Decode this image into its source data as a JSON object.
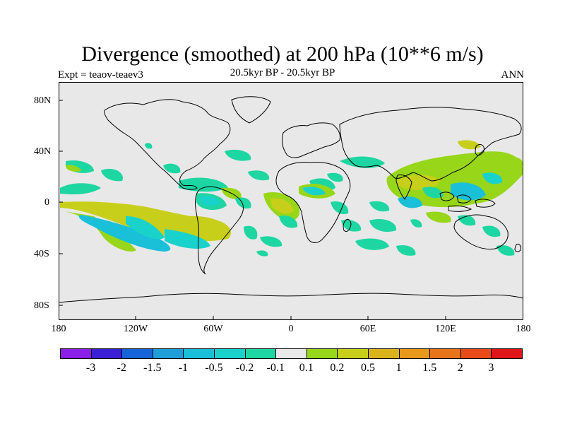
{
  "title": "Divergence (smoothed) at 200 hPa (10**6 m/s)",
  "subtitle_left": "Expt = teaov-teaev3",
  "subtitle_center": "20.5kyr BP - 20.5kyr BP",
  "subtitle_right": "ANN",
  "lat_labels": [
    "80N",
    "40N",
    "0",
    "40S",
    "80S"
  ],
  "lon_labels": [
    "180",
    "120W",
    "60W",
    "0",
    "60E",
    "120E",
    "180"
  ],
  "colorbar": {
    "colors": [
      "#8a1fe8",
      "#3b1fd6",
      "#1763d8",
      "#1f9ed9",
      "#19c0d8",
      "#19d2cc",
      "#1ed6a2",
      "#e8e8e8",
      "#98d61a",
      "#c8cf1a",
      "#d8b41a",
      "#e8981a",
      "#e8741a",
      "#e84a1a",
      "#e0151a"
    ],
    "labels": [
      "-3",
      "-2",
      "-1.5",
      "-1",
      "-0.5",
      "-0.2",
      "-0.1",
      "0.1",
      "0.2",
      "0.5",
      "1",
      "1.5",
      "2",
      "3"
    ]
  },
  "map_colors": {
    "background": "#e8e8e8",
    "neg1": "#1ed6a2",
    "neg2": "#19d2cc",
    "neg3": "#19c0d8",
    "pos1": "#98d61a",
    "pos2": "#c8cf1a"
  }
}
